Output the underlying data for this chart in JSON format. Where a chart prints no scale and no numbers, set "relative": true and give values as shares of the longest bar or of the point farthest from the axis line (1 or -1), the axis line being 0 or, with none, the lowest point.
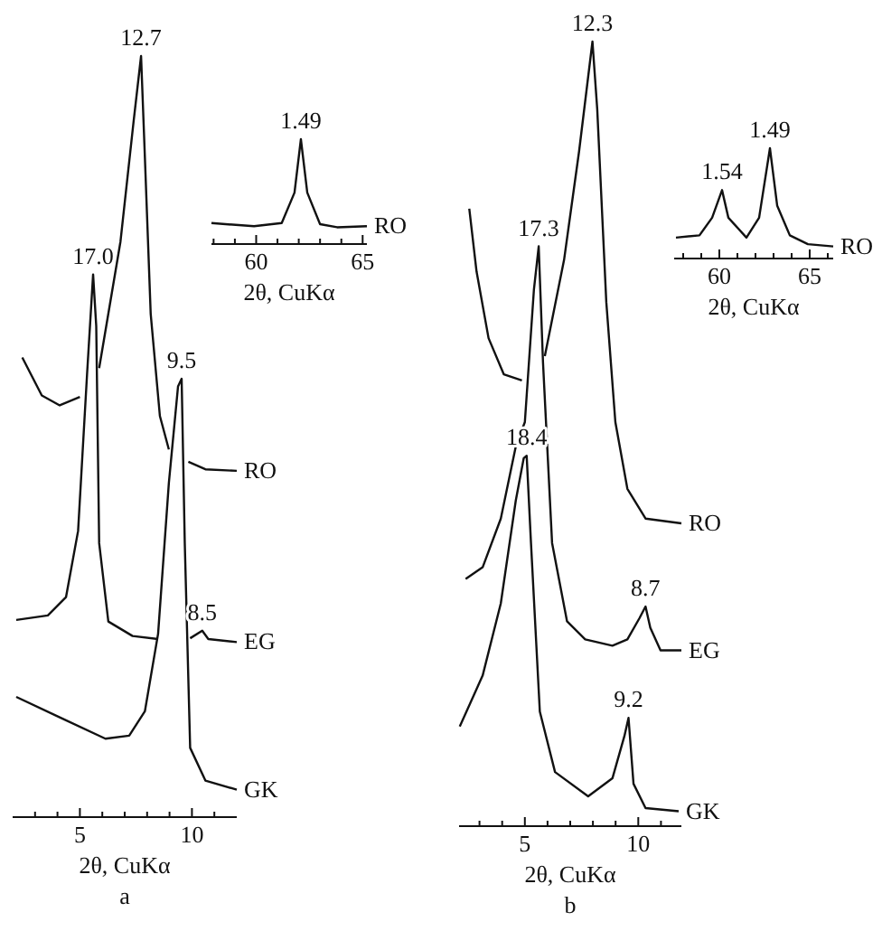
{
  "chart_data": [
    {
      "type": "line",
      "relative": true,
      "xlabel": "2θ, CuKα",
      "xlim": [
        2,
        12
      ],
      "tick_labels": "x",
      "xticks": [
        {
          "value": 3,
          "label": null
        },
        {
          "value": 4,
          "label": null
        },
        5,
        {
          "value": 6,
          "label": null
        },
        {
          "value": 7,
          "label": null
        },
        {
          "value": 8,
          "label": null
        },
        {
          "value": 9,
          "label": null
        },
        10,
        {
          "value": 11,
          "label": null
        }
      ],
      "series": [
        {
          "name": "RO",
          "color": "#111111",
          "x": [
            2.43,
            3.3,
            4.1,
            5.0,
            5.4,
            5.86,
            6.81,
            7.4,
            7.73,
            7.89,
            8.16,
            8.57,
            8.97,
            9.4,
            9.84,
            10.6,
            12.0
          ],
          "values": [
            0.604,
            0.554,
            0.541,
            0.552,
            null,
            0.59,
            0.756,
            0.915,
            1.0,
            0.875,
            0.661,
            0.527,
            0.483,
            null,
            0.467,
            0.457,
            0.455
          ]
        },
        {
          "name": "EG",
          "color": "#111111",
          "x": [
            2.16,
            3.57,
            4.38,
            4.92,
            5.32,
            5.59,
            5.73,
            5.86,
            6.27,
            7.35,
            8.49,
            9.2,
            9.92,
            10.46,
            10.73,
            12.0
          ],
          "values": [
            0.259,
            0.265,
            0.289,
            0.376,
            0.582,
            0.713,
            0.645,
            0.36,
            0.257,
            0.238,
            0.234,
            null,
            0.235,
            0.245,
            0.234,
            0.23
          ]
        },
        {
          "name": "GK",
          "color": "#111111",
          "x": [
            2.16,
            4.1,
            6.14,
            7.2,
            7.9,
            8.49,
            8.97,
            9.38,
            9.54,
            9.68,
            9.92,
            10.6,
            12.0
          ],
          "values": [
            0.158,
            0.131,
            0.103,
            0.107,
            0.139,
            0.241,
            0.439,
            0.566,
            0.576,
            0.36,
            0.091,
            0.048,
            0.036
          ]
        }
      ],
      "annotations": [
        {
          "text": "12.7",
          "x": 7.73,
          "y": 1.0
        },
        {
          "text": "17.0",
          "x": 5.59,
          "y": 0.713
        },
        {
          "text": "9.5",
          "x": 9.54,
          "y": 0.576
        },
        {
          "text": "8.5",
          "x": 10.46,
          "y": 0.245
        },
        "a"
      ]
    },
    {
      "type": "line",
      "relative": true,
      "xlabel": "2θ, CuKα",
      "xlim": [
        57.9,
        65.2
      ],
      "tick_labels": "x",
      "xticks": [
        {
          "value": 58,
          "label": null
        },
        {
          "value": 59,
          "label": null
        },
        60,
        {
          "value": 61,
          "label": null
        },
        {
          "value": 62,
          "label": null
        },
        {
          "value": 63,
          "label": null
        },
        {
          "value": 64,
          "label": null
        },
        65
      ],
      "series": [
        {
          "name": "RO",
          "color": "#111111",
          "x": [
            57.9,
            59.9,
            61.2,
            61.8,
            62.1,
            62.4,
            63.0,
            63.8,
            65.2
          ],
          "values": [
            0.2,
            0.17,
            0.2,
            0.49,
            1.0,
            0.49,
            0.19,
            0.16,
            0.17
          ]
        }
      ],
      "annotations": [
        {
          "text": "1.49",
          "x": 62.1,
          "y": 1.0
        }
      ]
    },
    {
      "type": "line",
      "relative": true,
      "xlabel": "2θ, CuKα",
      "xlim": [
        2.1,
        11.9
      ],
      "tick_labels": "x",
      "xticks": [
        {
          "value": 3,
          "label": null
        },
        {
          "value": 4,
          "label": null
        },
        5,
        {
          "value": 6,
          "label": null
        },
        {
          "value": 7,
          "label": null
        },
        {
          "value": 8,
          "label": null
        },
        {
          "value": 9,
          "label": null
        },
        10,
        {
          "value": 11,
          "label": null
        }
      ],
      "series": [
        {
          "name": "RO",
          "color": "#111111",
          "x": [
            2.55,
            2.87,
            3.4,
            4.07,
            4.87,
            5.4,
            5.88,
            6.73,
            7.39,
            7.98,
            8.19,
            8.59,
            8.99,
            9.52,
            10.32,
            11.9
          ],
          "values": [
            0.787,
            0.707,
            0.622,
            0.576,
            0.568,
            null,
            0.599,
            0.722,
            0.86,
            1.0,
            0.914,
            0.668,
            0.515,
            0.43,
            0.392,
            0.386
          ]
        },
        {
          "name": "EG",
          "color": "#111111",
          "x": [
            2.39,
            3.14,
            3.94,
            4.6,
            5.0,
            5.4,
            5.61,
            5.8,
            6.2,
            6.86,
            7.66,
            8.86,
            9.52,
            10.05,
            10.32,
            10.53,
            10.98,
            11.9
          ],
          "values": [
            0.315,
            0.33,
            0.392,
            0.484,
            0.515,
            0.684,
            0.739,
            0.591,
            0.361,
            0.261,
            0.238,
            0.23,
            0.238,
            0.265,
            0.28,
            0.253,
            0.224,
            0.224
          ]
        },
        {
          "name": "GK",
          "color": "#111111",
          "x": [
            2.13,
            3.14,
            3.94,
            4.6,
            4.95,
            5.08,
            5.27,
            5.66,
            6.33,
            7.79,
            8.86,
            9.39,
            9.57,
            9.79,
            10.32,
            11.78
          ],
          "values": [
            0.127,
            0.192,
            0.284,
            0.415,
            0.469,
            0.472,
            0.361,
            0.146,
            0.069,
            0.038,
            0.061,
            0.115,
            0.138,
            0.054,
            0.023,
            0.019
          ]
        }
      ],
      "annotations": [
        {
          "text": "12.3",
          "x": 7.98,
          "y": 1.0
        },
        {
          "text": "17.3",
          "x": 5.61,
          "y": 0.739
        },
        {
          "text": "18.4",
          "x": 5.08,
          "y": 0.472
        },
        {
          "text": "8.7",
          "x": 10.32,
          "y": 0.28
        },
        {
          "text": "9.2",
          "x": 9.57,
          "y": 0.138
        },
        "b"
      ]
    },
    {
      "type": "line",
      "relative": true,
      "xlabel": "2θ, CuKα",
      "xlim": [
        57.5,
        66.3
      ],
      "tick_labels": "x",
      "xticks": [
        {
          "value": 58,
          "label": null
        },
        {
          "value": 59,
          "label": null
        },
        60,
        {
          "value": 61,
          "label": null
        },
        {
          "value": 62,
          "label": null
        },
        {
          "value": 63,
          "label": null
        },
        {
          "value": 64,
          "label": null
        },
        65,
        {
          "value": 66,
          "label": null
        }
      ],
      "series": [
        {
          "name": "RO",
          "color": "#111111",
          "x": [
            57.6,
            58.9,
            59.6,
            60.15,
            60.5,
            61.5,
            62.2,
            62.8,
            63.2,
            63.9,
            64.9,
            66.3
          ],
          "values": [
            0.19,
            0.21,
            0.37,
            0.62,
            0.37,
            0.19,
            0.37,
            1.0,
            0.48,
            0.21,
            0.13,
            0.11
          ]
        }
      ],
      "annotations": [
        {
          "text": "1.54",
          "x": 60.15,
          "y": 0.62
        },
        {
          "text": "1.49",
          "x": 62.8,
          "y": 1.0
        }
      ]
    }
  ]
}
